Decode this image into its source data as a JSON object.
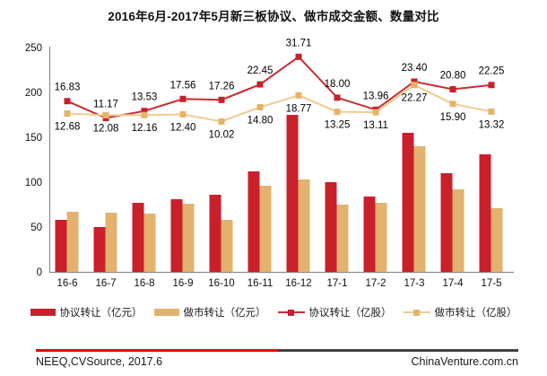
{
  "title": "2016年6月-2017年5月新三板协议、做市成交金额、数量对比",
  "chart_data": {
    "type": "bar",
    "subtype": "combo-bar-line-dual-axis",
    "categories": [
      "16-6",
      "16-7",
      "16-8",
      "16-9",
      "16-10",
      "16-11",
      "16-12",
      "17-1",
      "17-2",
      "17-3",
      "17-4",
      "17-5"
    ],
    "y_axis": {
      "min": 0,
      "max": 250,
      "step": 50,
      "ticks": [
        "0",
        "50",
        "100",
        "150",
        "200",
        "250"
      ],
      "gridlines": false
    },
    "series": [
      {
        "name": "协议转让（亿元）",
        "kind": "bar",
        "color": "#C9202B",
        "values": [
          58,
          50,
          77,
          81,
          86,
          112,
          175,
          100,
          84,
          155,
          110,
          131
        ]
      },
      {
        "name": "做市转让（亿元）",
        "kind": "bar",
        "color": "#E2B26E",
        "values": [
          67,
          66,
          65,
          76,
          58,
          96,
          103,
          75,
          77,
          140,
          92,
          71
        ]
      },
      {
        "name": "协议转让（亿股）",
        "kind": "line",
        "color": "#C9202B",
        "line_color": "#CD2A30",
        "values": [
          16.83,
          11.17,
          13.53,
          17.56,
          17.26,
          22.45,
          31.71,
          18.0,
          13.96,
          23.4,
          20.8,
          22.25
        ],
        "labels": [
          "16.83",
          "11.17",
          "13.53",
          "17.56",
          "17.26",
          "22.45",
          "31.71",
          "18.00",
          "13.96",
          "23.40",
          "20.80",
          "22.25"
        ],
        "label_position": "above"
      },
      {
        "name": "做市转让（亿股）",
        "kind": "line",
        "color": "#E4B469",
        "line_color": "#F0CB90",
        "values": [
          12.68,
          12.08,
          12.16,
          12.4,
          10.02,
          14.8,
          18.77,
          13.25,
          13.11,
          22.27,
          15.9,
          13.32
        ],
        "labels": [
          "12.68",
          "12.08",
          "12.16",
          "12.40",
          "10.02",
          "14.80",
          "18.77",
          "13.25",
          "13.11",
          "22.27",
          "15.90",
          "13.32"
        ],
        "label_position": "below"
      }
    ],
    "legend_position": "bottom"
  },
  "colors": {
    "axis": "#8C8C8C",
    "text": "#111111",
    "divider_left": "#F20000",
    "divider_right": "#404040"
  },
  "footer": {
    "left": "NEEQ,CVSource, 2017.6",
    "right": "ChinaVenture.com.cn"
  }
}
